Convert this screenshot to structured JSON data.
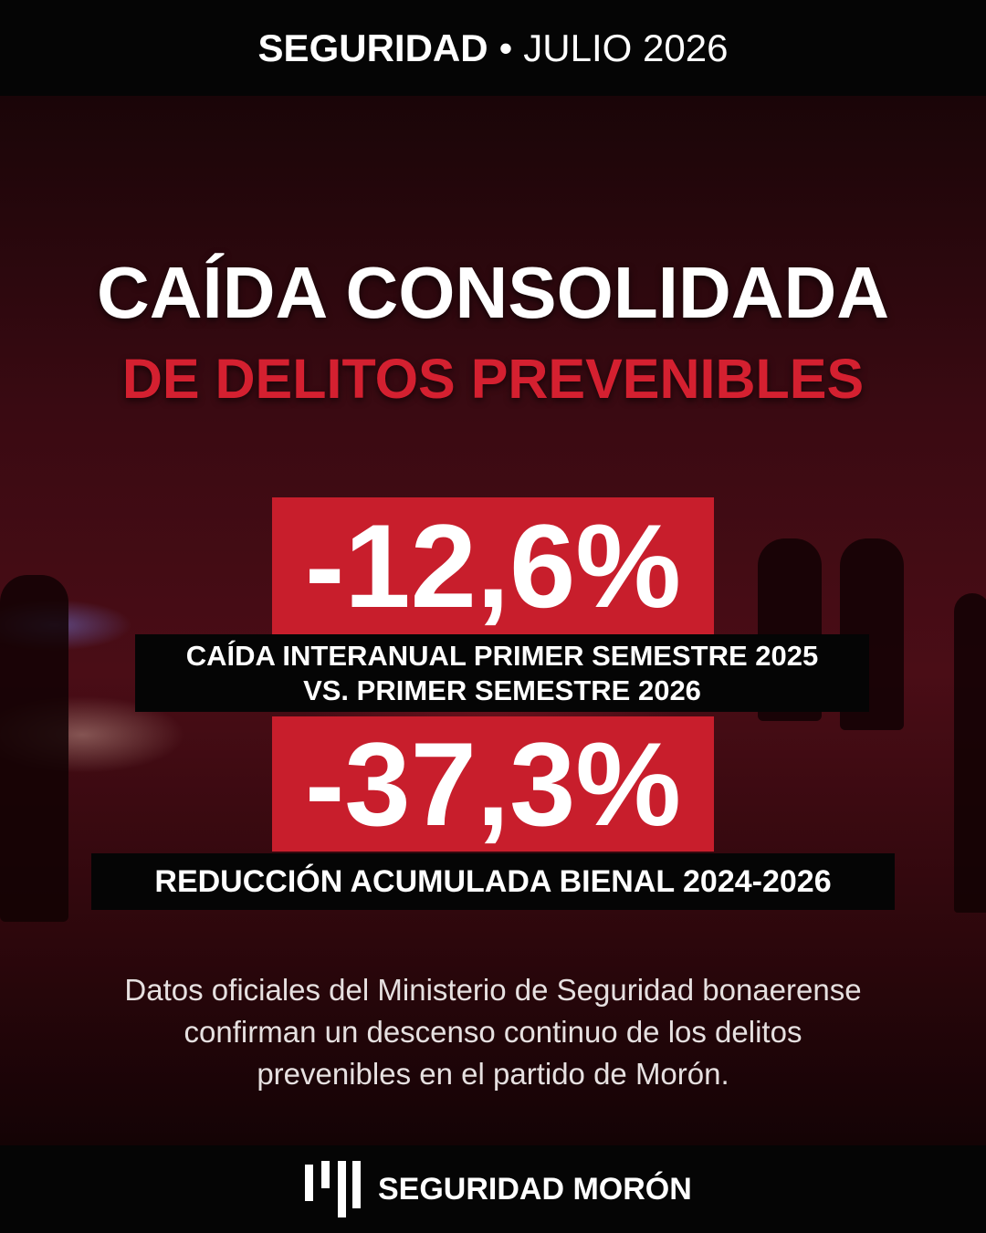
{
  "header": {
    "section": "SEGURIDAD",
    "separator": "•",
    "date": "JULIO 2026"
  },
  "title": {
    "line1": "CAÍDA CONSOLIDADA",
    "line2": "DE DELITOS PREVENIBLES"
  },
  "stats": [
    {
      "value": "-12,6%",
      "label": [
        "CAÍDA INTERANUAL PRIMER SEMESTRE 2025",
        "VS. PRIMER SEMESTRE 2026"
      ]
    },
    {
      "value": "-37,3%",
      "label": [
        "REDUCCIÓN ACUMULADA BIENAL 2024-2026"
      ]
    }
  ],
  "description": [
    "Datos oficiales del Ministerio de Seguridad bonaerense",
    "confirman un descenso continuo de los delitos",
    "prevenibles en el partido de Morón."
  ],
  "footer": {
    "brand": "SEGURIDAD MORÓN"
  }
}
